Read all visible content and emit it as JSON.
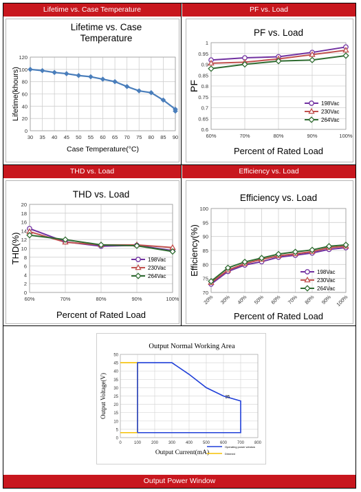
{
  "headers": {
    "lifetime": "Lifetime vs. Case Temperature",
    "pf": "PF vs. Load",
    "thd": "THD vs. Load",
    "efficiency": "Efficiency vs. Load",
    "power_window": "Output Power Window"
  },
  "colors": {
    "header_bg": "#c8171e",
    "lifetime_line": "#4a7ebb",
    "s198": "#7030a0",
    "s230": "#c0504d",
    "s264": "#2e6b30",
    "op_window": "#1f3fd8",
    "dimmed": "#f6c000"
  },
  "chart_data": [
    {
      "id": "lifetime",
      "type": "line",
      "title": "Lifetime vs. Case Temperature",
      "title_lines": [
        "Lifetime vs. Case",
        "Temperature"
      ],
      "xlabel": "Case Temperature(°C)",
      "ylabel": "Lifetime(khours)",
      "x": [
        30,
        35,
        40,
        45,
        50,
        55,
        60,
        65,
        70,
        75,
        80,
        85,
        90
      ],
      "values": [
        100,
        98,
        95,
        93,
        90,
        88,
        84,
        80,
        72,
        65,
        62,
        50,
        35
      ],
      "extra_point": {
        "x": 90,
        "y": 32
      },
      "xlim": [
        30,
        90
      ],
      "ylim": [
        0,
        120
      ],
      "yticks": [
        0,
        20,
        40,
        60,
        80,
        100,
        120
      ],
      "grid": true
    },
    {
      "id": "pf",
      "type": "line",
      "title": "PF vs. Load",
      "xlabel": "Percent of Rated Load",
      "ylabel": "PF",
      "categories": [
        "60%",
        "70%",
        "80%",
        "90%",
        "100%"
      ],
      "series": [
        {
          "name": "198Vac",
          "values": [
            0.92,
            0.93,
            0.935,
            0.955,
            0.98
          ]
        },
        {
          "name": "230Vac",
          "values": [
            0.905,
            0.91,
            0.925,
            0.945,
            0.965
          ]
        },
        {
          "name": "264Vac",
          "values": [
            0.88,
            0.9,
            0.915,
            0.92,
            0.94
          ]
        }
      ],
      "ylim": [
        0.6,
        1
      ],
      "yticks": [
        "0.6",
        "0.65",
        "0.7",
        "0.75",
        "0.8",
        "0.85",
        "0.9",
        "0.95",
        "1"
      ],
      "legend": "lower-right",
      "grid": true
    },
    {
      "id": "thd",
      "type": "line",
      "title": "THD vs. Load",
      "xlabel": "Percent of Rated Load",
      "ylabel": "THD(%)",
      "categories": [
        "60%",
        "70%",
        "80%",
        "90%",
        "100%"
      ],
      "series": [
        {
          "name": "198Vac",
          "values": [
            14.5,
            11.5,
            10.5,
            10.7,
            9.5
          ]
        },
        {
          "name": "230Vac",
          "values": [
            13.8,
            11.4,
            10.8,
            10.8,
            10.2
          ]
        },
        {
          "name": "264Vac",
          "values": [
            13.0,
            12.0,
            10.8,
            10.6,
            9.3
          ]
        }
      ],
      "ylim": [
        0,
        20
      ],
      "yticks": [
        "0",
        "2",
        "4",
        "6",
        "8",
        "10",
        "12",
        "14",
        "16",
        "18",
        "20"
      ],
      "legend": "lower-right",
      "grid": true
    },
    {
      "id": "efficiency",
      "type": "line",
      "title": "Efficiency vs. Load",
      "xlabel": "Percent of Rated Load",
      "ylabel": "Efficiency(%)",
      "categories": [
        "20%",
        "30%",
        "40%",
        "50%",
        "60%",
        "70%",
        "80%",
        "90%",
        "100%"
      ],
      "series": [
        {
          "name": "198Vac",
          "values": [
            73.0,
            77.5,
            79.8,
            81.0,
            82.6,
            83.3,
            84.1,
            85.4,
            86.0
          ]
        },
        {
          "name": "230Vac",
          "values": [
            73.5,
            78.0,
            80.3,
            81.8,
            83.1,
            83.8,
            84.6,
            86.0,
            86.5
          ]
        },
        {
          "name": "264Vac",
          "values": [
            74.0,
            78.8,
            80.9,
            82.3,
            83.7,
            84.5,
            85.2,
            86.5,
            87.0
          ]
        }
      ],
      "ylim": [
        70,
        100
      ],
      "yticks": [
        "70",
        "75",
        "80",
        "85",
        "90",
        "95",
        "100"
      ],
      "legend": "lower-right",
      "grid": true
    },
    {
      "id": "power_window",
      "type": "line",
      "title": "Output Normal Working Area",
      "xlabel": "Output Current(mA)",
      "ylabel": "Output Voltage(V)",
      "series": [
        {
          "name": "Operating power window",
          "points": [
            [
              100,
              3
            ],
            [
              100,
              45
            ],
            [
              300,
              45
            ],
            [
              400,
              38
            ],
            [
              500,
              30
            ],
            [
              600,
              25
            ],
            [
              700,
              22
            ],
            [
              700,
              3
            ],
            [
              100,
              3
            ]
          ]
        },
        {
          "name": "Dimmed",
          "points": [
            [
              0,
              45
            ],
            [
              100,
              45
            ],
            [
              100,
              3
            ],
            [
              0,
              3
            ]
          ]
        }
      ],
      "annotation": "25",
      "xlim": [
        0,
        800
      ],
      "ylim": [
        0,
        50
      ],
      "xticks": [
        "0",
        "100",
        "200",
        "300",
        "400",
        "500",
        "600",
        "700",
        "800"
      ],
      "yticks": [
        "0",
        "5",
        "10",
        "15",
        "20",
        "25",
        "30",
        "35",
        "40",
        "45",
        "50"
      ],
      "legend": "lower-right",
      "grid": true
    }
  ]
}
